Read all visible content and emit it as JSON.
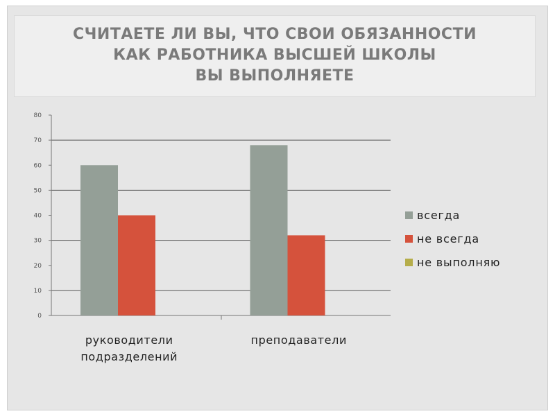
{
  "title": {
    "lines": [
      "СЧИТАЕТЕ ЛИ ВЫ, ЧТО СВОИ ОБЯЗАННОСТИ",
      "КАК РАБОТНИКА ВЫСШЕЙ ШКОЛЫ",
      "ВЫ ВЫПОЛНЯЕТЕ"
    ]
  },
  "chart_data": {
    "type": "bar",
    "categories": [
      [
        "руководители",
        "подразделений"
      ],
      [
        "преподаватели"
      ]
    ],
    "series": [
      {
        "name": "всегда",
        "color": "#949f97",
        "values": [
          60,
          68
        ]
      },
      {
        "name": "не всегда",
        "color": "#d5523c",
        "values": [
          40,
          32
        ]
      },
      {
        "name": "не выполняю",
        "color": "#b5ad4a",
        "values": [
          0,
          0
        ]
      }
    ],
    "y_ticks": [
      "0",
      "10",
      "20",
      "30",
      "40",
      "50",
      "60",
      "70",
      "80"
    ],
    "ylim": [
      0,
      80
    ],
    "grid": true,
    "legend_position": "right"
  }
}
